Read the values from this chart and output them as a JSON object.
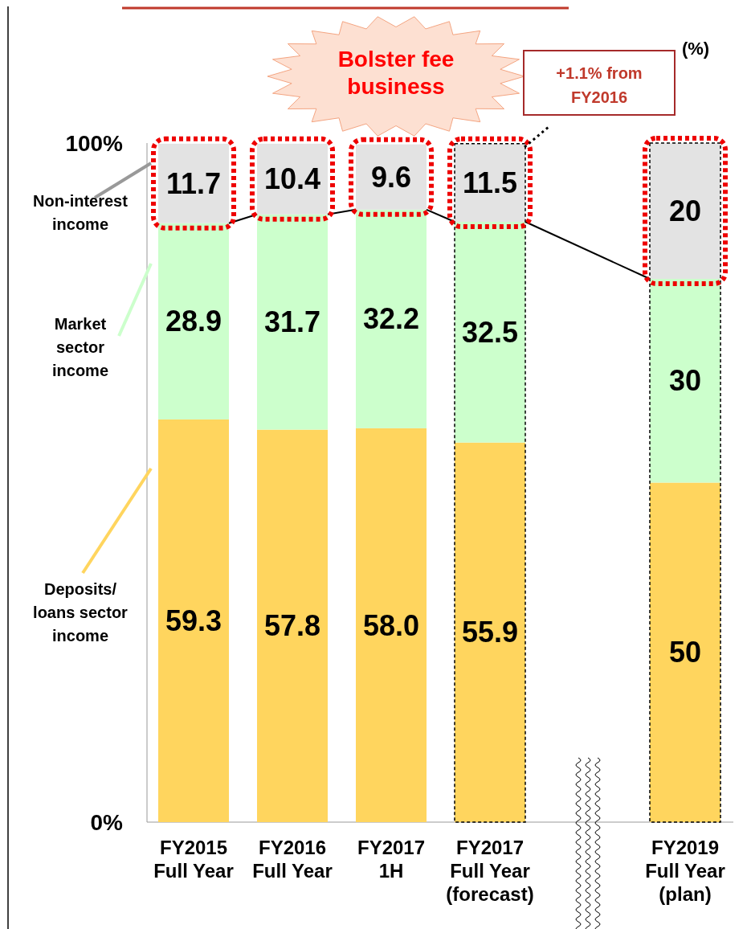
{
  "chart_data": {
    "type": "bar",
    "stacked": true,
    "categories": [
      "FY2015 Full Year",
      "FY2016 Full Year",
      "FY2017 1H",
      "FY2017 Full Year (forecast)",
      "FY2019 Full Year (plan)"
    ],
    "series": [
      {
        "name": "Deposits/ loans sector income",
        "color": "#ffd55e",
        "values": [
          59.3,
          57.8,
          58.0,
          55.9,
          50
        ],
        "value_labels": [
          "59.3",
          "57.8",
          "58.0",
          "55.9",
          "50"
        ]
      },
      {
        "name": "Market sector income",
        "color": "#ccffcc",
        "values": [
          28.9,
          31.7,
          32.2,
          32.5,
          30
        ],
        "value_labels": [
          "28.9",
          "31.7",
          "32.2",
          "32.5",
          "30"
        ]
      },
      {
        "name": "Non-interest income",
        "color": "#e3e3e3",
        "values": [
          11.7,
          10.4,
          9.6,
          11.5,
          20
        ],
        "value_labels": [
          "11.7",
          "10.4",
          "9.6",
          "11.5",
          "20"
        ]
      }
    ],
    "ylim": [
      0,
      100
    ],
    "yticks": [
      {
        "value": 0,
        "label": "0%"
      },
      {
        "value": 100,
        "label": "100%"
      }
    ],
    "legend": "left",
    "annotations": [
      "Bolster fee business",
      "+1.1% from FY2016",
      "(%)"
    ]
  }
}
